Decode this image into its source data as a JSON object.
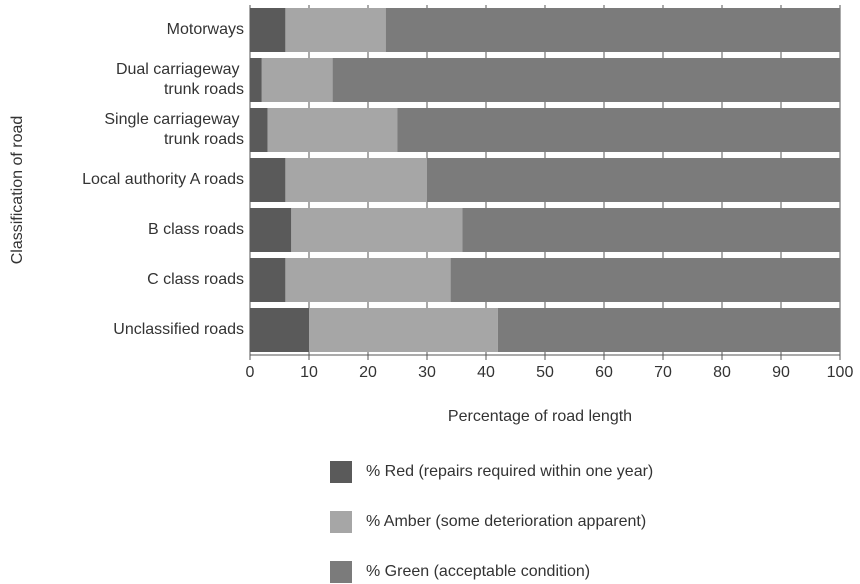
{
  "chart_data": {
    "type": "stacked_bar_horizontal",
    "x_label": "Percentage of road length",
    "y_label": "Classification of road",
    "categories": [
      "Motorways",
      "Dual carriageway trunk roads",
      "Single carriageway trunk roads",
      "Local authority A roads",
      "B class roads",
      "C class roads",
      "Unclassified roads"
    ],
    "series": [
      {
        "name": "% Red (repairs required within one year)",
        "color": "#5a5a5a",
        "values": [
          6,
          2,
          3,
          6,
          7,
          6,
          10
        ]
      },
      {
        "name": "% Amber (some deterioration apparent)",
        "color": "#a6a6a6",
        "values": [
          17,
          12,
          22,
          24,
          29,
          28,
          32
        ]
      },
      {
        "name": "% Green (acceptable condition)",
        "color": "#7b7b7b",
        "values": [
          77,
          86,
          75,
          70,
          64,
          66,
          58
        ]
      }
    ],
    "xlim": [
      0,
      100
    ],
    "xticks": [
      0,
      10,
      20,
      30,
      40,
      50,
      60,
      70,
      80,
      90,
      100
    ],
    "grid": true
  }
}
